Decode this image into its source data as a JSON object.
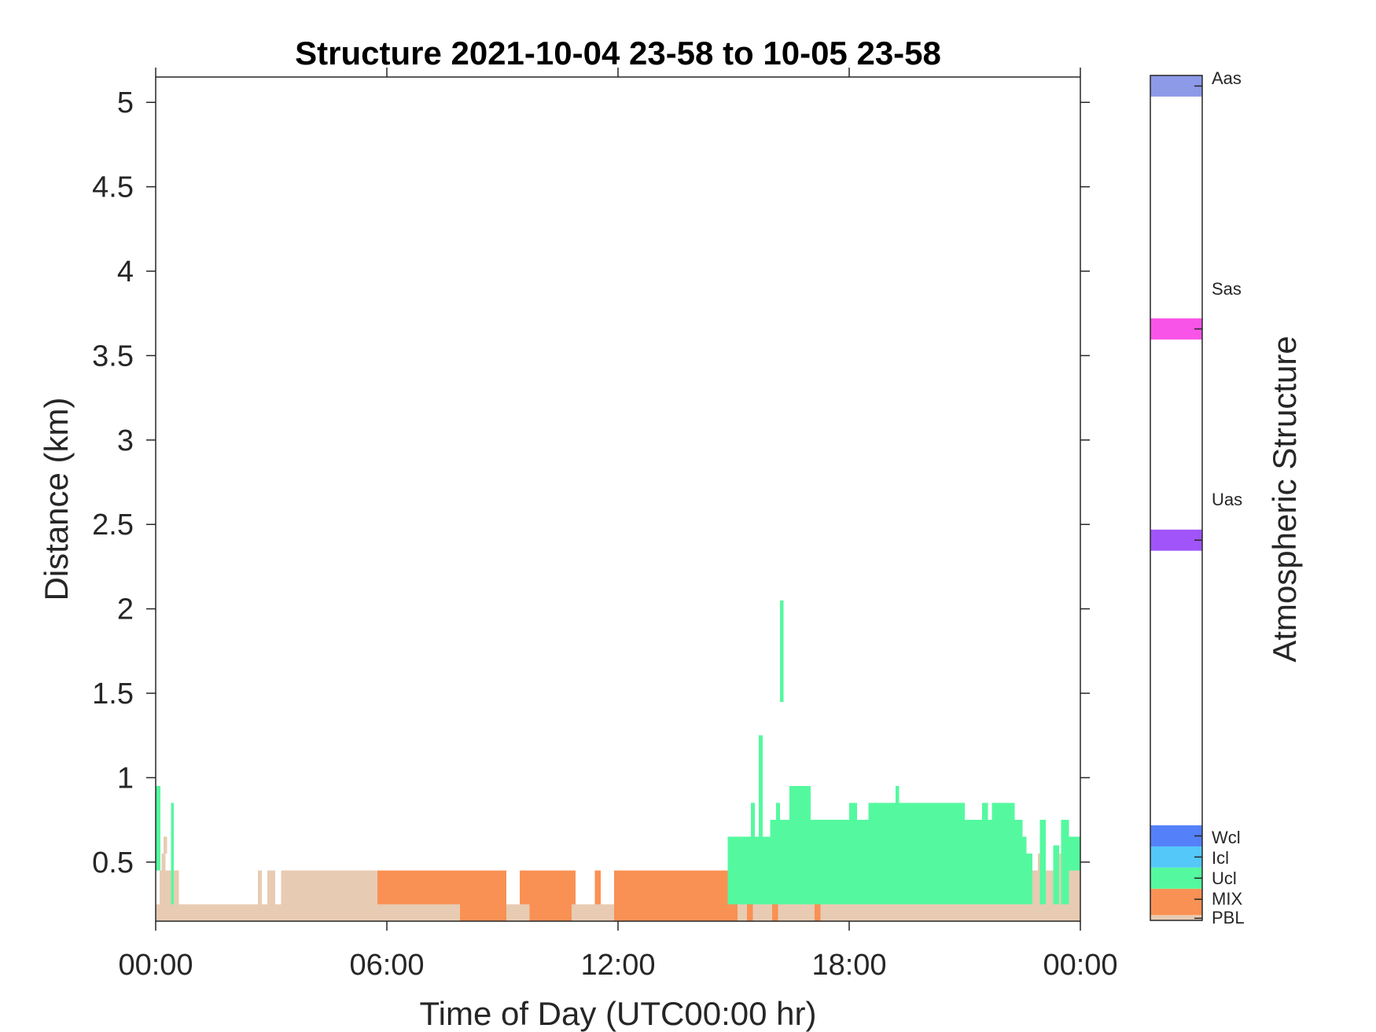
{
  "chart_data": {
    "type": "heatmap",
    "title": "Structure 2021-10-04 23-58 to 10-05 23-58",
    "xlabel": "Time of Day (UTC00:00 hr)",
    "ylabel": "Distance (km)",
    "x_unit": "hours",
    "xlim": [
      0,
      24
    ],
    "ylim": [
      0.15,
      5.15
    ],
    "x_ticks": [
      0,
      6,
      12,
      18,
      24
    ],
    "x_tick_labels": [
      "00:00",
      "06:00",
      "12:00",
      "18:00",
      "00:00"
    ],
    "y_ticks": [
      0.5,
      1,
      1.5,
      2,
      2.5,
      3,
      3.5,
      4,
      4.5,
      5
    ],
    "y_tick_labels": [
      "0.5",
      "1",
      "1.5",
      "2",
      "2.5",
      "3",
      "3.5",
      "4",
      "4.5",
      "5"
    ],
    "colorbar": {
      "label": "Atmospheric Structure",
      "classes": [
        {
          "name": "PBL",
          "color": "#e8cbb3"
        },
        {
          "name": "MIX",
          "color": "#f99154"
        },
        {
          "name": "Ucl",
          "color": "#54f99f"
        },
        {
          "name": "Icl",
          "color": "#54c8f9"
        },
        {
          "name": "Wcl",
          "color": "#5480f9"
        },
        {
          "name": "Uas",
          "color": "#a154f9"
        },
        {
          "name": "Sas",
          "color": "#f954e8"
        },
        {
          "name": "Aas",
          "color": "#8c9ae8"
        }
      ],
      "range": [
        0,
        8
      ]
    },
    "regions": [
      {
        "cls": "PBL",
        "t0": 0,
        "t1": 24,
        "y0": 0.15,
        "y1": 0.25
      },
      {
        "cls": "PBL",
        "t0": 0.1,
        "t1": 0.6,
        "y0": 0.25,
        "y1": 0.45
      },
      {
        "cls": "PBL",
        "t0": 0.15,
        "t1": 0.25,
        "y0": 0.45,
        "y1": 0.55
      },
      {
        "cls": "PBL",
        "t0": 0.2,
        "t1": 0.3,
        "y0": 0.55,
        "y1": 0.65
      },
      {
        "cls": "PBL",
        "t0": 2.65,
        "t1": 2.75,
        "y0": 0.25,
        "y1": 0.45
      },
      {
        "cls": "PBL",
        "t0": 2.9,
        "t1": 3.1,
        "y0": 0.25,
        "y1": 0.45
      },
      {
        "cls": "PBL",
        "t0": 3.25,
        "t1": 5.75,
        "y0": 0.25,
        "y1": 0.45
      },
      {
        "cls": "PBL",
        "t0": 22.6,
        "t1": 24,
        "y0": 0.25,
        "y1": 0.45
      },
      {
        "cls": "PBL",
        "t0": 22.9,
        "t1": 23.1,
        "y0": 0.45,
        "y1": 0.55
      },
      {
        "cls": "PBL",
        "t0": 23.3,
        "t1": 23.5,
        "y0": 0.45,
        "y1": 0.55
      },
      {
        "cls": "MIX",
        "t0": 5.75,
        "t1": 9.1,
        "y0": 0.25,
        "y1": 0.45
      },
      {
        "cls": "MIX",
        "t0": 9.45,
        "t1": 10.9,
        "y0": 0.25,
        "y1": 0.45
      },
      {
        "cls": "MIX",
        "t0": 11.4,
        "t1": 11.55,
        "y0": 0.25,
        "y1": 0.45
      },
      {
        "cls": "MIX",
        "t0": 11.9,
        "t1": 14.85,
        "y0": 0.25,
        "y1": 0.45
      },
      {
        "cls": "MIX",
        "t0": 7.9,
        "t1": 9.1,
        "y0": 0.15,
        "y1": 0.25
      },
      {
        "cls": "MIX",
        "t0": 9.7,
        "t1": 10.8,
        "y0": 0.15,
        "y1": 0.25
      },
      {
        "cls": "MIX",
        "t0": 11.9,
        "t1": 15.1,
        "y0": 0.15,
        "y1": 0.25
      },
      {
        "cls": "MIX",
        "t0": 15.35,
        "t1": 15.5,
        "y0": 0.15,
        "y1": 0.25
      },
      {
        "cls": "MIX",
        "t0": 16.0,
        "t1": 16.15,
        "y0": 0.15,
        "y1": 0.25
      },
      {
        "cls": "MIX",
        "t0": 17.1,
        "t1": 17.25,
        "y0": 0.15,
        "y1": 0.25
      },
      {
        "cls": "Ucl",
        "t0": 0,
        "t1": 0.12,
        "y0": 0.45,
        "y1": 0.95
      },
      {
        "cls": "Ucl",
        "t0": 0.12,
        "t1": 0.12,
        "y0": 0.25,
        "y1": 0.45
      },
      {
        "cls": "Ucl",
        "t0": 0.4,
        "t1": 0.47,
        "y0": 0.25,
        "y1": 0.85
      },
      {
        "cls": "Ucl",
        "t0": 14.85,
        "t1": 22.6,
        "y0": 0.25,
        "y1": 0.65
      },
      {
        "cls": "Ucl",
        "t0": 15.45,
        "t1": 15.55,
        "y0": 0.65,
        "y1": 0.85
      },
      {
        "cls": "Ucl",
        "t0": 15.65,
        "t1": 15.75,
        "y0": 0.65,
        "y1": 1.25
      },
      {
        "cls": "Ucl",
        "t0": 15.95,
        "t1": 22.5,
        "y0": 0.65,
        "y1": 0.75
      },
      {
        "cls": "Ucl",
        "t0": 16.1,
        "t1": 16.2,
        "y0": 0.75,
        "y1": 0.85
      },
      {
        "cls": "Ucl",
        "t0": 16.2,
        "t1": 16.3,
        "y0": 1.45,
        "y1": 2.05
      },
      {
        "cls": "Ucl",
        "t0": 16.45,
        "t1": 17.0,
        "y0": 0.75,
        "y1": 0.95
      },
      {
        "cls": "Ucl",
        "t0": 18.0,
        "t1": 18.2,
        "y0": 0.75,
        "y1": 0.85
      },
      {
        "cls": "Ucl",
        "t0": 18.5,
        "t1": 21.0,
        "y0": 0.75,
        "y1": 0.85
      },
      {
        "cls": "Ucl",
        "t0": 19.2,
        "t1": 19.3,
        "y0": 0.85,
        "y1": 0.95
      },
      {
        "cls": "Ucl",
        "t0": 21.45,
        "t1": 21.6,
        "y0": 0.75,
        "y1": 0.85
      },
      {
        "cls": "Ucl",
        "t0": 21.7,
        "t1": 22.3,
        "y0": 0.75,
        "y1": 0.85
      },
      {
        "cls": "Ucl",
        "t0": 22.6,
        "t1": 22.75,
        "y0": 0.25,
        "y1": 0.55
      },
      {
        "cls": "Ucl",
        "t0": 22.95,
        "t1": 23.1,
        "y0": 0.25,
        "y1": 0.75
      },
      {
        "cls": "Ucl",
        "t0": 23.3,
        "t1": 23.45,
        "y0": 0.25,
        "y1": 0.6
      },
      {
        "cls": "Ucl",
        "t0": 23.5,
        "t1": 23.7,
        "y0": 0.25,
        "y1": 0.75
      },
      {
        "cls": "Ucl",
        "t0": 23.7,
        "t1": 24,
        "y0": 0.45,
        "y1": 0.65
      }
    ]
  }
}
